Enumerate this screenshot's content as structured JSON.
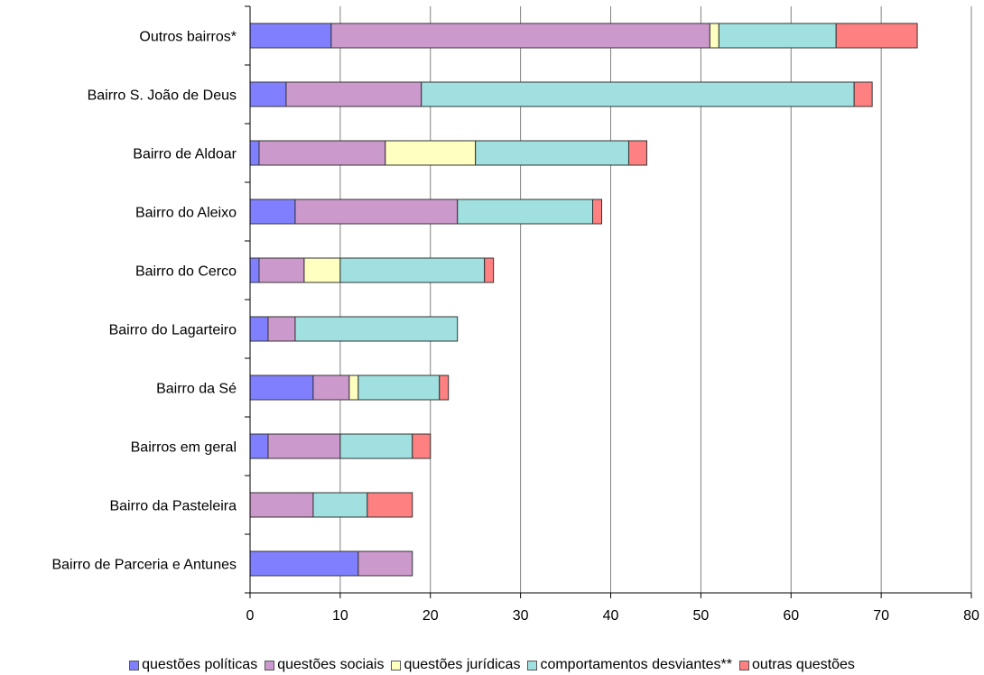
{
  "chart_data": {
    "type": "bar",
    "orientation": "horizontal",
    "stacked": true,
    "categories": [
      "Outros bairros*",
      "Bairro S. João de Deus",
      "Bairro de Aldoar",
      "Bairro do Aleixo",
      "Bairro do Cerco",
      "Bairro do Lagarteiro",
      "Bairro da Sé",
      "Bairros em geral",
      "Bairro da Pasteleira",
      "Bairro de Parceria e Antunes"
    ],
    "series": [
      {
        "name": "questões políticas",
        "color": "#8080FF",
        "values": [
          9,
          4,
          1,
          5,
          1,
          2,
          7,
          2,
          0,
          12
        ]
      },
      {
        "name": "questões sociais",
        "color": "#CC99CC",
        "values": [
          42,
          15,
          14,
          18,
          5,
          3,
          4,
          8,
          7,
          6
        ]
      },
      {
        "name": "questões jurídicas",
        "color": "#FFFFC0",
        "values": [
          1,
          0,
          10,
          0,
          4,
          0,
          1,
          0,
          0,
          0
        ]
      },
      {
        "name": "comportamentos desviantes**",
        "color": "#A0E0E0",
        "values": [
          13,
          48,
          17,
          15,
          16,
          18,
          9,
          8,
          6,
          0
        ]
      },
      {
        "name": "outras questões",
        "color": "#FF8080",
        "values": [
          9,
          2,
          2,
          1,
          1,
          0,
          1,
          2,
          5,
          0
        ]
      }
    ],
    "xticks": [
      "0",
      "10",
      "20",
      "30",
      "40",
      "50",
      "60",
      "70",
      "80"
    ],
    "xlim": [
      0,
      80
    ],
    "grid": true,
    "legend": "bottom",
    "title": "",
    "xlabel": "",
    "ylabel": ""
  }
}
